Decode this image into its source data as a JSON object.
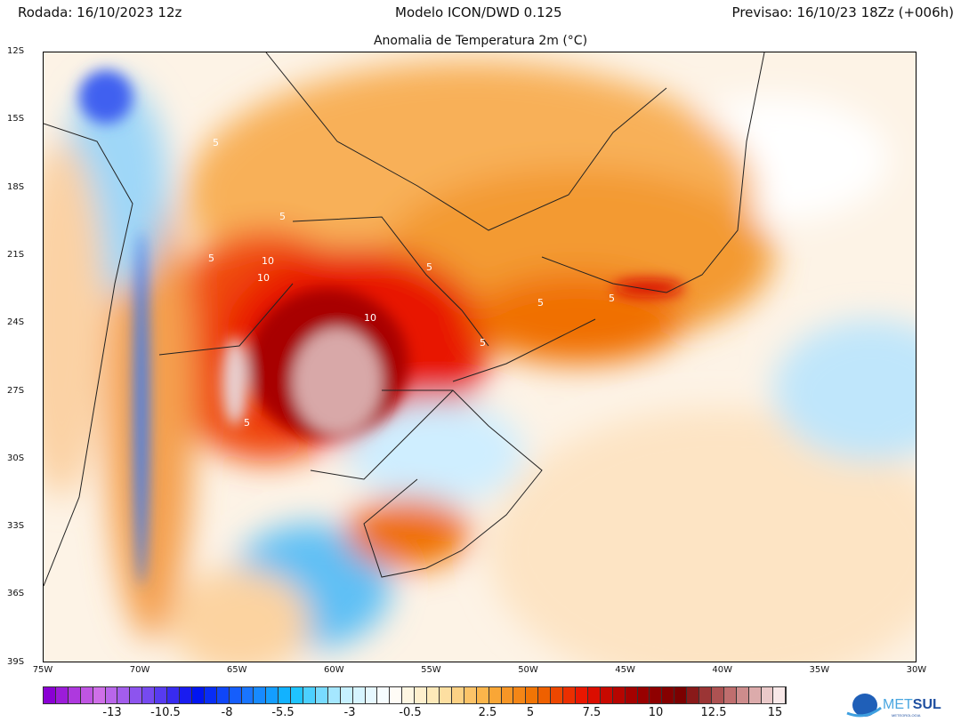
{
  "header": {
    "run": "Rodada: 16/10/2023 12z",
    "model": "Modelo ICON/DWD 0.125",
    "forecast": "Previsao: 16/10/23 18Zz (+006h)",
    "title": "Anomalia de Temperatura 2m (°C)"
  },
  "map": {
    "lat_ticks": [
      "12S",
      "15S",
      "18S",
      "21S",
      "24S",
      "27S",
      "30S",
      "33S",
      "36S",
      "39S"
    ],
    "lon_ticks": [
      "75W",
      "70W",
      "65W",
      "60W",
      "55W",
      "50W",
      "45W",
      "40W",
      "35W",
      "30W"
    ],
    "contour_labels": [
      "5",
      "5",
      "5",
      "10",
      "10",
      "10",
      "5",
      "5",
      "5",
      "5",
      "5"
    ]
  },
  "colorbar": {
    "labels": [
      "-13",
      "-10.5",
      "-8",
      "-5.5",
      "-3",
      "-0.5",
      "2.5",
      "5",
      "7.5",
      "10",
      "12.5",
      "15"
    ],
    "stops": [
      "#8a00d4",
      "#d070e8",
      "#7a4cf0",
      "#0010f0",
      "#1a70ff",
      "#10c0ff",
      "#c0eeff",
      "#ffffff",
      "#fde6b0",
      "#fbb040",
      "#f07000",
      "#e81000",
      "#a00000",
      "#7a0000",
      "#c07070",
      "#f8e8e8"
    ]
  },
  "logo": {
    "name": "METSUL",
    "sub": "METEOROLOGIA"
  }
}
